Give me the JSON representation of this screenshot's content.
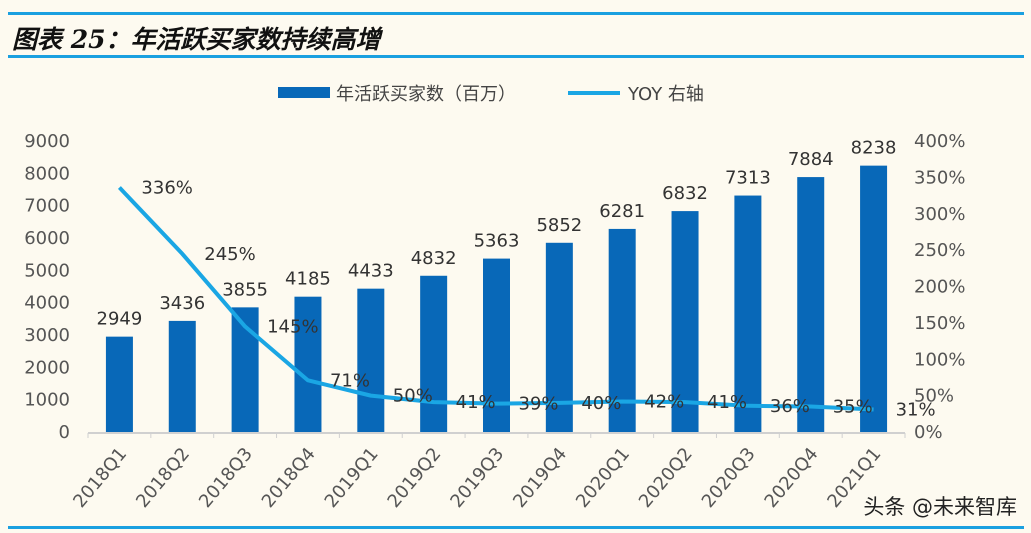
{
  "title": "图表 25：年活跃买家数持续高增",
  "watermark": "头条 @未来智库",
  "colors": {
    "bar": "#0868b8",
    "line": "#1aa6e4",
    "rule": "#1aa0e0"
  },
  "chart_data": {
    "type": "bar+line",
    "categories": [
      "2018Q1",
      "2018Q2",
      "2018Q3",
      "2018Q4",
      "2019Q1",
      "2019Q2",
      "2019Q3",
      "2019Q4",
      "2020Q1",
      "2020Q2",
      "2020Q3",
      "2020Q4",
      "2021Q1"
    ],
    "series": [
      {
        "name": "年活跃买家数（百万）",
        "type": "bar",
        "axis": "left",
        "values": [
          2949,
          3436,
          3855,
          4185,
          4433,
          4832,
          5363,
          5852,
          6281,
          6832,
          7313,
          7884,
          8238
        ]
      },
      {
        "name": "YOY 右轴",
        "type": "line",
        "axis": "right",
        "values": [
          336,
          245,
          145,
          71,
          50,
          41,
          39,
          40,
          42,
          41,
          36,
          35,
          31
        ],
        "labels": [
          "336%",
          "245%",
          "145%",
          "71%",
          "50%",
          "41%",
          "39%",
          "40%",
          "42%",
          "41%",
          "36%",
          "35%",
          "31%"
        ]
      }
    ],
    "y_left": {
      "range": [
        0,
        9000
      ],
      "ticks": [
        "0",
        "1000",
        "2000",
        "3000",
        "4000",
        "5000",
        "6000",
        "7000",
        "8000",
        "9000"
      ]
    },
    "y_right": {
      "range": [
        0,
        400
      ],
      "ticks": [
        "0%",
        "50%",
        "100%",
        "150%",
        "200%",
        "250%",
        "300%",
        "350%",
        "400%"
      ]
    },
    "legend": "top",
    "grid": false
  }
}
